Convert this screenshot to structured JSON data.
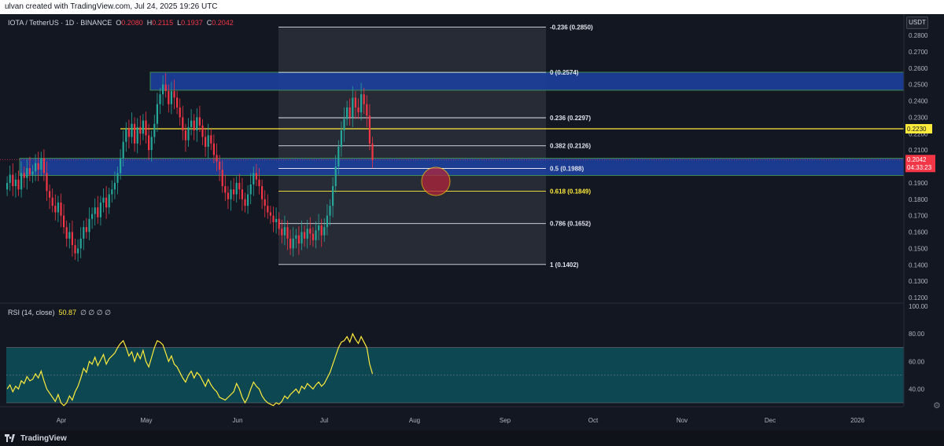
{
  "topbar": {
    "text": "ulvan created with TradingView.com, Jul 24, 2025 19:26 UTC"
  },
  "legend": {
    "symbol": "IOTA / TetherUS · 1D · BINANCE",
    "o_label": "O",
    "o": "0.2080",
    "h_label": "H",
    "h": "0.2115",
    "l_label": "L",
    "l": "0.1937",
    "c_label": "C",
    "c": "0.2042"
  },
  "currency_button": "USDT",
  "price_axis": {
    "ticks": [
      "0.2800",
      "0.2700",
      "0.2600",
      "0.2500",
      "0.2400",
      "0.2300",
      "0.2200",
      "0.2100",
      "0.2000",
      "0.1900",
      "0.1800",
      "0.1700",
      "0.1600",
      "0.1500",
      "0.1400",
      "0.1300",
      "0.1200"
    ],
    "label_yellow": "0.2230",
    "last_price": "0.2042",
    "countdown": "04:33:23"
  },
  "fib_levels": [
    {
      "label": "-0.236 (0.2850)",
      "value": 0.285,
      "yellow": false
    },
    {
      "label": "0 (0.2574)",
      "value": 0.2574,
      "yellow": false
    },
    {
      "label": "0.236 (0.2297)",
      "value": 0.2297,
      "yellow": false
    },
    {
      "label": "0.382 (0.2126)",
      "value": 0.2126,
      "yellow": false
    },
    {
      "label": "0.5 (0.1988)",
      "value": 0.1988,
      "yellow": false
    },
    {
      "label": "0.618 (0.1849)",
      "value": 0.1849,
      "yellow": true
    },
    {
      "label": "0.786 (0.1652)",
      "value": 0.1652,
      "yellow": false
    },
    {
      "label": "1 (0.1402)",
      "value": 0.1402,
      "yellow": false
    }
  ],
  "zones": [
    {
      "top": 0.2575,
      "bottom": 0.2465
    },
    {
      "top": 0.205,
      "bottom": 0.1945
    }
  ],
  "horizontal_line": {
    "value": 0.223
  },
  "rsi": {
    "label": "RSI (14, close)",
    "value": "50.87",
    "extras": "∅ ∅ ∅ ∅",
    "ticks": [
      "100.00",
      "80.00",
      "60.00",
      "40.00"
    ]
  },
  "time_axis": [
    "Apr",
    "May",
    "Jun",
    "Jul",
    "Aug",
    "Sep",
    "Oct",
    "Nov",
    "Dec",
    "2026"
  ],
  "colors": {
    "up": "#26a69a",
    "down": "#f23645",
    "zone": "#1c3f9a",
    "fib_bg": "#2a2e39",
    "yellow": "#ffeb3b",
    "rsi_band": "#0d4c57",
    "axis_text": "#b2b5be"
  },
  "bottombar": {
    "brand": "TradingView"
  }
}
